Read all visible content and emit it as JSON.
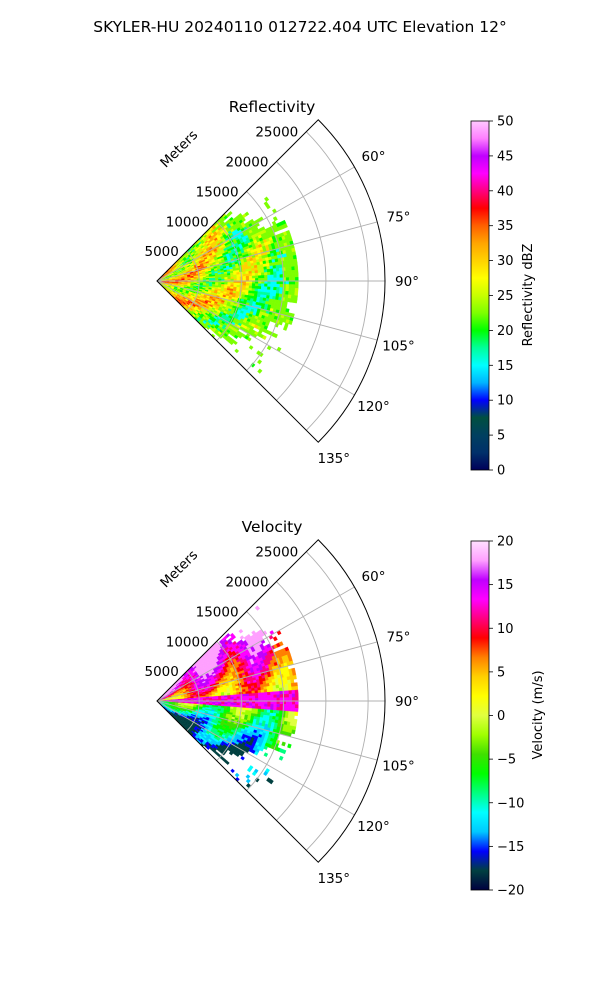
{
  "figure": {
    "suptitle": "SKYLER-HU  20240110  012722.404 UTC Elevation 12°"
  },
  "chart_data": [
    {
      "type": "heatmap",
      "title": "Reflectivity",
      "projection": "polar (sector)",
      "radial_axis_label": "Meters",
      "radial_ticks": [
        5000,
        10000,
        15000,
        20000,
        25000
      ],
      "radial_tick_labels": [
        "5000",
        "10000",
        "15000",
        "20000",
        "25000"
      ],
      "angular_ticks": [
        "60°",
        "75°",
        "90°",
        "105°",
        "120°",
        "135°"
      ],
      "azimuth_range_deg": [
        45,
        135
      ],
      "range_max_m": 27000,
      "grid": true,
      "colorbar": {
        "label": "Reflectivity dBZ",
        "vmin": 0,
        "vmax": 50,
        "ticks": [
          "0",
          "5",
          "10",
          "15",
          "20",
          "25",
          "30",
          "35",
          "40",
          "45",
          "50"
        ],
        "colormap": "NWSRef"
      }
    },
    {
      "type": "heatmap",
      "title": "Velocity",
      "projection": "polar (sector)",
      "radial_axis_label": "Meters",
      "radial_ticks": [
        5000,
        10000,
        15000,
        20000,
        25000
      ],
      "radial_tick_labels": [
        "5000",
        "10000",
        "15000",
        "20000",
        "25000"
      ],
      "angular_ticks": [
        "60°",
        "75°",
        "90°",
        "105°",
        "120°",
        "135°"
      ],
      "azimuth_range_deg": [
        45,
        135
      ],
      "range_max_m": 27000,
      "grid": true,
      "colorbar": {
        "label": "Velocity (m/s)",
        "vmin": -20,
        "vmax": 20,
        "ticks": [
          "−20",
          "−15",
          "−10",
          "−5",
          "0",
          "5",
          "10",
          "15",
          "20"
        ],
        "colormap": "NWSVel"
      }
    }
  ],
  "colors": {
    "grid": "#b0b0b0",
    "ref_stops": [
      "#00005a",
      "#00306a",
      "#004060",
      "#005040",
      "#0000ff",
      "#00b4ff",
      "#00ffff",
      "#00ff9a",
      "#00ff00",
      "#7dff00",
      "#c8ff00",
      "#ffff00",
      "#ffd200",
      "#ffa500",
      "#ff6000",
      "#ff0000",
      "#ff0080",
      "#ff00ff",
      "#c000ff",
      "#ff80ff",
      "#ffc8ff"
    ],
    "vel_stops": [
      "#000040",
      "#004040",
      "#0000ff",
      "#00c8ff",
      "#00ffff",
      "#00ff80",
      "#00ff00",
      "#40e000",
      "#a0ff00",
      "#e0ff40",
      "#ffff00",
      "#ffd000",
      "#ff8000",
      "#ff0000",
      "#ff0080",
      "#ff00ff",
      "#c000ff",
      "#ffa0ff",
      "#ffe0ff"
    ]
  }
}
